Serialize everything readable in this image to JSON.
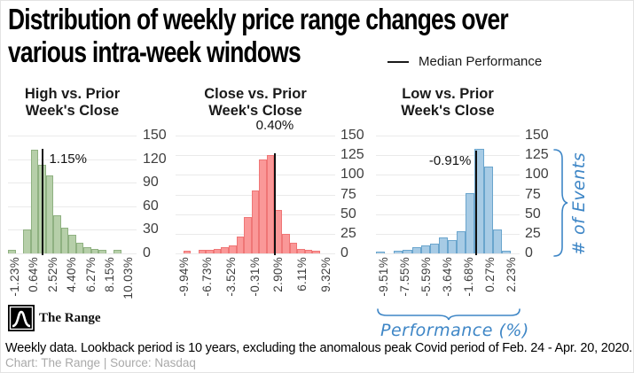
{
  "header": {
    "title_line1": "Distribution of weekly price range changes over",
    "title_line2": "various intra-week windows",
    "legend_label": "Median Performance"
  },
  "annotations": {
    "y_axis_label": "# of Events",
    "x_axis_label": "Performance (%)",
    "accent_color": "#3e86c6"
  },
  "logo": {
    "text": "The Range"
  },
  "footer": {
    "note": "Weekly data. Lookback period is 10 years, excluding the anomalous peak Covid period of Feb. 24 - Apr. 20, 2020.",
    "credit": "Chart: The Range | Source: Nasdaq"
  },
  "chart_data": [
    {
      "id": "high-vs-prior-close",
      "type": "histogram",
      "title_line1": "High vs. Prior",
      "title_line2": "Week's Close",
      "median_label": "1.15%",
      "median_value_pct": 1.15,
      "fill": "#b6cfa9",
      "stroke": "#8fb181",
      "ylim": [
        0,
        150
      ],
      "yticks": [
        150,
        120,
        90,
        60,
        30,
        0
      ],
      "xtick_labels": [
        "-1.23%",
        "0.64%",
        "2.52%",
        "4.40%",
        "6.27%",
        "8.15%",
        "10.03%"
      ],
      "bars": [
        4,
        0,
        30,
        132,
        113,
        99,
        48,
        33,
        24,
        14,
        8,
        6,
        5,
        0,
        4,
        0,
        0
      ]
    },
    {
      "id": "close-vs-prior-close",
      "type": "histogram",
      "title_line1": "Close vs. Prior",
      "title_line2": "Week's Close",
      "median_label": "0.40%",
      "median_value_pct": 0.4,
      "fill": "#fa9898",
      "stroke": "#ef7676",
      "ylim": [
        0,
        150
      ],
      "yticks": [
        150,
        125,
        100,
        75,
        50,
        25,
        0
      ],
      "xtick_labels": [
        "-9.94%",
        "-6.73%",
        "-3.52%",
        "-0.31%",
        "2.90%",
        "6.11%",
        "9.32%"
      ],
      "bars": [
        0,
        3,
        0,
        4,
        5,
        6,
        8,
        10,
        22,
        46,
        80,
        120,
        125,
        55,
        25,
        13,
        6,
        4,
        3,
        0,
        0
      ]
    },
    {
      "id": "low-vs-prior-close",
      "type": "histogram",
      "title_line1": "Low vs. Prior",
      "title_line2": "Week's Close",
      "median_label": "-0.91%",
      "median_value_pct": -0.91,
      "fill": "#a7cbe5",
      "stroke": "#6aa5cd",
      "ylim": [
        0,
        150
      ],
      "yticks": [
        150,
        125,
        100,
        75,
        50,
        25,
        0
      ],
      "xtick_labels": [
        "-9.51%",
        "-7.55%",
        "-5.59%",
        "-3.64%",
        "-1.68%",
        "0.27%",
        "2.23%"
      ],
      "bars": [
        2,
        0,
        3,
        5,
        8,
        10,
        12,
        20,
        17,
        28,
        77,
        133,
        110,
        30,
        3,
        0
      ]
    }
  ]
}
